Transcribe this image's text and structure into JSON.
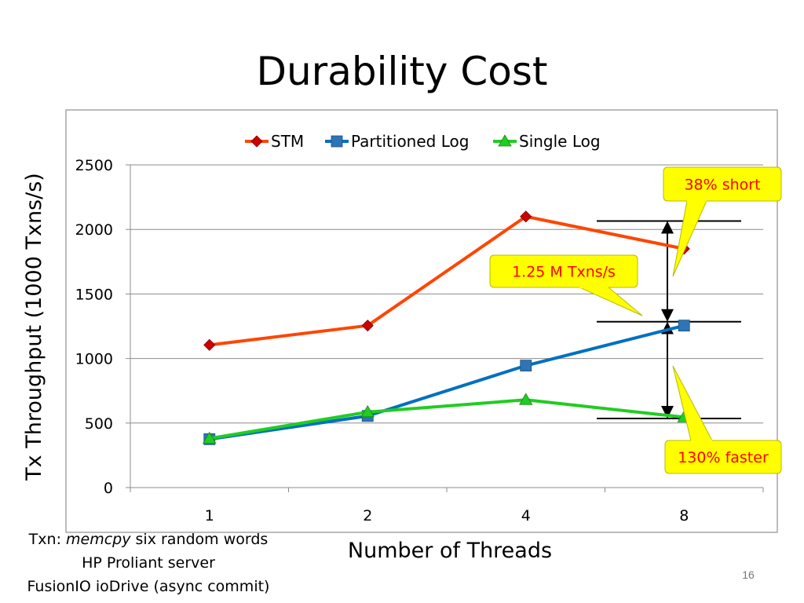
{
  "title": "Durability Cost",
  "chart_data": {
    "type": "line",
    "categories": [
      "1",
      "2",
      "4",
      "8"
    ],
    "series": [
      {
        "name": "STM",
        "values": [
          1105,
          1255,
          2100,
          1850
        ],
        "color": "#ff4500",
        "marker": "diamond",
        "marker_color": "#cc0000"
      },
      {
        "name": "Partitioned Log",
        "values": [
          375,
          555,
          945,
          1255
        ],
        "color": "#0070c0",
        "marker": "square",
        "marker_color": "#2e75b6"
      },
      {
        "name": "Single Log",
        "values": [
          380,
          585,
          680,
          545
        ],
        "color": "#22cc22",
        "marker": "triangle",
        "marker_color": "#22cc22"
      }
    ],
    "xlabel": "Number of Threads",
    "ylabel": "Tx Throughput (1000 Txns/s)",
    "ylim": [
      0,
      2500
    ],
    "yticks": [
      "0",
      "500",
      "1000",
      "1500",
      "2000",
      "2500"
    ],
    "grid": true,
    "legend_position": "top",
    "annotations": [
      {
        "text": "38% short",
        "text_color": "#ff0000",
        "fill": "#ffff00"
      },
      {
        "text": "1.25 M Txns/s",
        "text_color": "#ff0000",
        "fill": "#ffff00"
      },
      {
        "text": "130% faster",
        "text_color": "#ff0000",
        "fill": "#ffff00"
      }
    ],
    "reference_levels": [
      2065,
      1285,
      535
    ]
  },
  "notes": {
    "line1_prefix": "Txn: ",
    "line1_em": "memcpy",
    "line1_suffix": " six random words",
    "line2": "HP Proliant server",
    "line3": "FusionIO ioDrive (async commit)"
  },
  "page_number": "16"
}
